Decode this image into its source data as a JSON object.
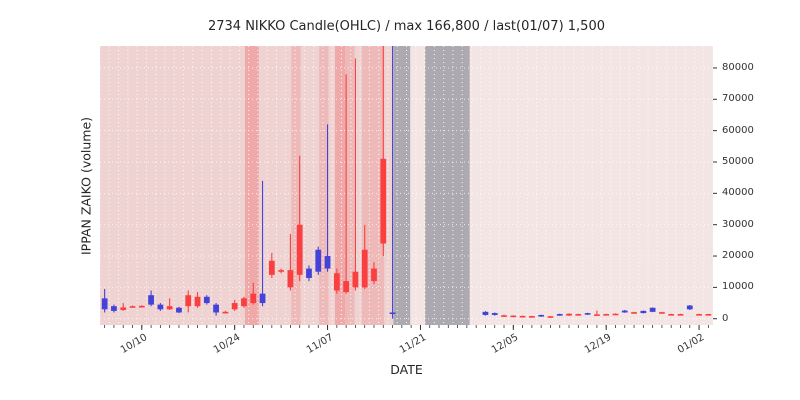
{
  "chart_data": {
    "type": "candlestick",
    "title": "2734 NIKKO Candle(OHLC) / max 166,800 / last(01/07) 1,500",
    "xlabel": "DATE",
    "ylabel": "IPPAN ZAIKO (volume)",
    "ylim": [
      -2000,
      87000
    ],
    "yticks": [
      0,
      10000,
      20000,
      30000,
      40000,
      50000,
      60000,
      70000,
      80000
    ],
    "slots": 66,
    "xticks": [
      {
        "slot": 4,
        "label": "10/10"
      },
      {
        "slot": 14,
        "label": "10/24"
      },
      {
        "slot": 24,
        "label": "11/07"
      },
      {
        "slot": 34,
        "label": "11/21"
      },
      {
        "slot": 44,
        "label": "12/05"
      },
      {
        "slot": 54,
        "label": "12/19"
      },
      {
        "slot": 64,
        "label": "01/02"
      }
    ],
    "colors": {
      "up": "#f93f3f",
      "down": "#4343d9",
      "bg": "#f4e5e5",
      "grid": "#ffffff",
      "axis_text": "#333333"
    },
    "band_colors": {
      "pink_light": "rgba(233,186,186,0.40)",
      "pink": "rgba(238,160,160,0.50)",
      "pink_strong": "rgba(240,138,138,0.58)",
      "gray": "rgba(148,148,158,0.75)"
    },
    "bands": [
      {
        "from": 0.0,
        "to": 31.6,
        "color": "pink_light"
      },
      {
        "from": 15.6,
        "to": 17.1,
        "color": "pink_strong"
      },
      {
        "from": 20.6,
        "to": 21.6,
        "color": "pink"
      },
      {
        "from": 23.6,
        "to": 24.6,
        "color": "pink"
      },
      {
        "from": 25.3,
        "to": 26.4,
        "color": "pink_strong"
      },
      {
        "from": 26.4,
        "to": 27.4,
        "color": "pink"
      },
      {
        "from": 28.2,
        "to": 30.6,
        "color": "pink"
      },
      {
        "from": 31.6,
        "to": 33.4,
        "color": "gray"
      },
      {
        "from": 35.0,
        "to": 39.8,
        "color": "gray"
      }
    ],
    "candles": [
      [
        0,
        6500,
        9500,
        2000,
        3000,
        "b"
      ],
      [
        1,
        4000,
        4500,
        2000,
        2500,
        "b"
      ],
      [
        2,
        2800,
        5000,
        2500,
        3600,
        "r"
      ],
      [
        3,
        3800,
        4200,
        3600,
        4000,
        "r"
      ],
      [
        4,
        3900,
        4300,
        3700,
        4100,
        "r"
      ],
      [
        5,
        7500,
        9000,
        4000,
        4500,
        "b"
      ],
      [
        6,
        4500,
        5000,
        2500,
        3000,
        "b"
      ],
      [
        7,
        3000,
        6500,
        2800,
        4000,
        "r"
      ],
      [
        8,
        3500,
        3800,
        1800,
        2000,
        "b"
      ],
      [
        9,
        4000,
        9000,
        2000,
        7500,
        "r"
      ],
      [
        10,
        4000,
        8500,
        3500,
        7000,
        "r"
      ],
      [
        11,
        7000,
        7500,
        4500,
        5000,
        "b"
      ],
      [
        12,
        4500,
        5000,
        1000,
        2000,
        "b"
      ],
      [
        13,
        2000,
        2500,
        1800,
        2200,
        "r"
      ],
      [
        14,
        3000,
        6000,
        2500,
        5000,
        "r"
      ],
      [
        15,
        4000,
        7000,
        3500,
        6500,
        "r"
      ],
      [
        16,
        5000,
        11500,
        4500,
        8000,
        "r"
      ],
      [
        17,
        8000,
        44000,
        4000,
        5000,
        "b"
      ],
      [
        18,
        14000,
        21000,
        13000,
        18500,
        "r"
      ],
      [
        19,
        15000,
        16000,
        14500,
        15500,
        "r"
      ],
      [
        20,
        10000,
        27000,
        9000,
        15500,
        "r"
      ],
      [
        21,
        14000,
        52000,
        12000,
        30000,
        "r"
      ],
      [
        22,
        16000,
        17000,
        12000,
        13000,
        "b"
      ],
      [
        23,
        22000,
        23000,
        14000,
        15000,
        "b"
      ],
      [
        24,
        20000,
        62000,
        15000,
        16000,
        "b"
      ],
      [
        25,
        9000,
        16000,
        8000,
        14500,
        "r"
      ],
      [
        26,
        8500,
        78000,
        8000,
        12000,
        "r"
      ],
      [
        27,
        10000,
        83000,
        9000,
        15000,
        "r"
      ],
      [
        28,
        10000,
        30000,
        9500,
        22000,
        "r"
      ],
      [
        29,
        12000,
        18000,
        11000,
        16000,
        "r"
      ],
      [
        30,
        24000,
        87000,
        20000,
        51000,
        "r"
      ],
      [
        31,
        2000,
        87000,
        0,
        1500,
        "b"
      ],
      [
        41,
        2200,
        2400,
        1000,
        1200,
        "b"
      ],
      [
        42,
        1800,
        2000,
        1000,
        1200,
        "b"
      ],
      [
        43,
        1000,
        1300,
        900,
        1100,
        "r"
      ],
      [
        44,
        900,
        1100,
        800,
        1000,
        "r"
      ],
      [
        45,
        800,
        1000,
        700,
        900,
        "r"
      ],
      [
        46,
        800,
        950,
        750,
        850,
        "r"
      ],
      [
        47,
        1200,
        1300,
        600,
        700,
        "b"
      ],
      [
        48,
        700,
        900,
        600,
        800,
        "r"
      ],
      [
        49,
        1500,
        1600,
        900,
        1000,
        "b"
      ],
      [
        50,
        1000,
        1700,
        900,
        1600,
        "r"
      ],
      [
        51,
        1400,
        1600,
        1300,
        1500,
        "r"
      ],
      [
        52,
        1800,
        1900,
        1200,
        1300,
        "b"
      ],
      [
        53,
        1300,
        2600,
        1200,
        1400,
        "r"
      ],
      [
        54,
        1400,
        1600,
        1300,
        1500,
        "r"
      ],
      [
        55,
        1500,
        1700,
        1400,
        1600,
        "r"
      ],
      [
        56,
        2600,
        2800,
        1900,
        2000,
        "b"
      ],
      [
        57,
        2000,
        2200,
        1900,
        2100,
        "r"
      ],
      [
        58,
        2500,
        2600,
        1700,
        1800,
        "b"
      ],
      [
        59,
        3500,
        3600,
        2100,
        2200,
        "b"
      ],
      [
        60,
        2000,
        2200,
        1900,
        2100,
        "r"
      ],
      [
        61,
        1500,
        1600,
        1400,
        1500,
        "r"
      ],
      [
        62,
        1500,
        1600,
        1400,
        1500,
        "r"
      ],
      [
        63,
        4200,
        4400,
        2800,
        3000,
        "b"
      ],
      [
        64,
        1400,
        1600,
        1300,
        1500,
        "r"
      ],
      [
        65,
        1450,
        1550,
        1400,
        1500,
        "r"
      ]
    ]
  }
}
